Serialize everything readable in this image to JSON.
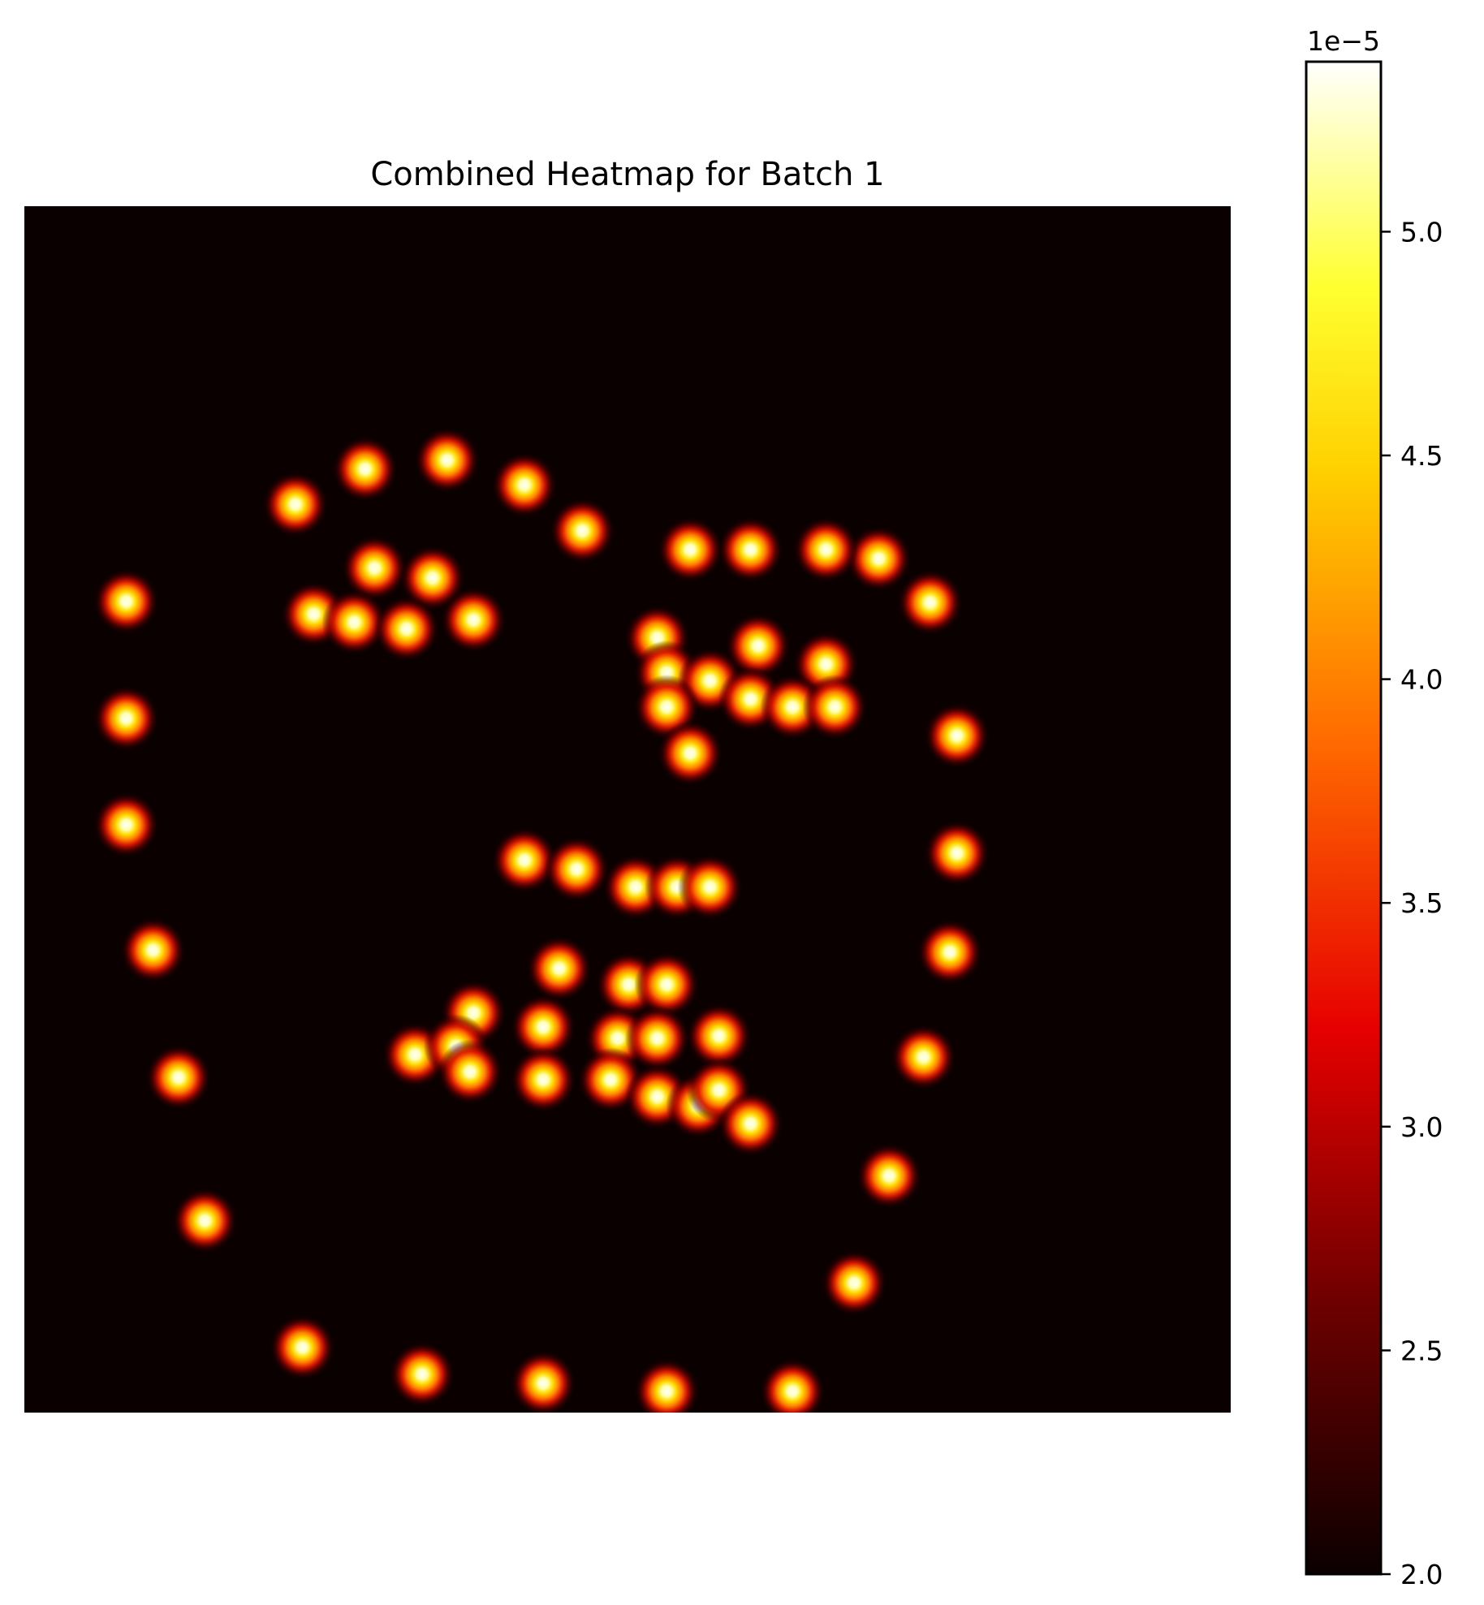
{
  "chart_data": {
    "type": "heatmap",
    "title": "Combined Heatmap for Batch 1",
    "xlabel": "",
    "ylabel": "",
    "axes_visible": false,
    "grid": false,
    "x_range": [
      0,
      256
    ],
    "y_range": [
      0,
      256
    ],
    "colormap": "hot",
    "colorbar": {
      "placement": "right",
      "min": 2.0,
      "max": 5.38,
      "offset_label": "1e−5",
      "ticks": [
        2.0,
        2.5,
        3.0,
        3.5,
        4.0,
        4.5,
        5.0
      ],
      "tick_labels": [
        "2.0",
        "2.5",
        "3.0",
        "3.5",
        "4.0",
        "4.5",
        "5.0"
      ]
    },
    "background_value": 2.0,
    "peak_value": 5.38,
    "points": [
      [
        21.6,
        83.9
      ],
      [
        21.6,
        108.7
      ],
      [
        21.6,
        131.3
      ],
      [
        27.3,
        157.9
      ],
      [
        32.7,
        184.9
      ],
      [
        38.3,
        215.3
      ],
      [
        59.0,
        242.2
      ],
      [
        84.4,
        247.9
      ],
      [
        110.1,
        249.8
      ],
      [
        136.3,
        251.5
      ],
      [
        163.0,
        251.5
      ],
      [
        176.1,
        228.5
      ],
      [
        183.5,
        205.8
      ],
      [
        190.8,
        180.6
      ],
      [
        196.4,
        158.3
      ],
      [
        197.9,
        137.3
      ],
      [
        197.9,
        112.4
      ],
      [
        192.2,
        84.1
      ],
      [
        181.3,
        74.8
      ],
      [
        170.1,
        72.9
      ],
      [
        154.1,
        72.9
      ],
      [
        141.3,
        72.9
      ],
      [
        118.4,
        68.9
      ],
      [
        106.1,
        59.2
      ],
      [
        89.7,
        53.9
      ],
      [
        72.3,
        55.8
      ],
      [
        57.5,
        63.3
      ],
      [
        74.3,
        76.8
      ],
      [
        86.6,
        78.9
      ],
      [
        61.4,
        86.6
      ],
      [
        70.0,
        88.3
      ],
      [
        81.1,
        89.7
      ],
      [
        95.3,
        87.8
      ],
      [
        134.3,
        91.6
      ],
      [
        136.3,
        99.0
      ],
      [
        145.5,
        100.7
      ],
      [
        136.3,
        106.3
      ],
      [
        155.7,
        93.3
      ],
      [
        170.1,
        97.2
      ],
      [
        154.1,
        104.6
      ],
      [
        163.0,
        106.3
      ],
      [
        172.0,
        106.3
      ],
      [
        141.3,
        116.1
      ],
      [
        106.1,
        138.8
      ],
      [
        117.2,
        140.7
      ],
      [
        129.7,
        144.5
      ],
      [
        138.5,
        144.5
      ],
      [
        145.5,
        144.5
      ],
      [
        113.5,
        161.8
      ],
      [
        128.2,
        165.2
      ],
      [
        136.3,
        165.2
      ],
      [
        95.3,
        171.2
      ],
      [
        110.1,
        174.2
      ],
      [
        125.9,
        176.6
      ],
      [
        134.3,
        176.6
      ],
      [
        147.4,
        176.1
      ],
      [
        82.9,
        180.1
      ],
      [
        91.6,
        178.3
      ],
      [
        94.6,
        183.7
      ],
      [
        110.1,
        185.4
      ],
      [
        124.4,
        185.4
      ],
      [
        134.3,
        189.0
      ],
      [
        143.0,
        190.9
      ],
      [
        147.4,
        187.6
      ],
      [
        154.1,
        194.7
      ]
    ]
  }
}
